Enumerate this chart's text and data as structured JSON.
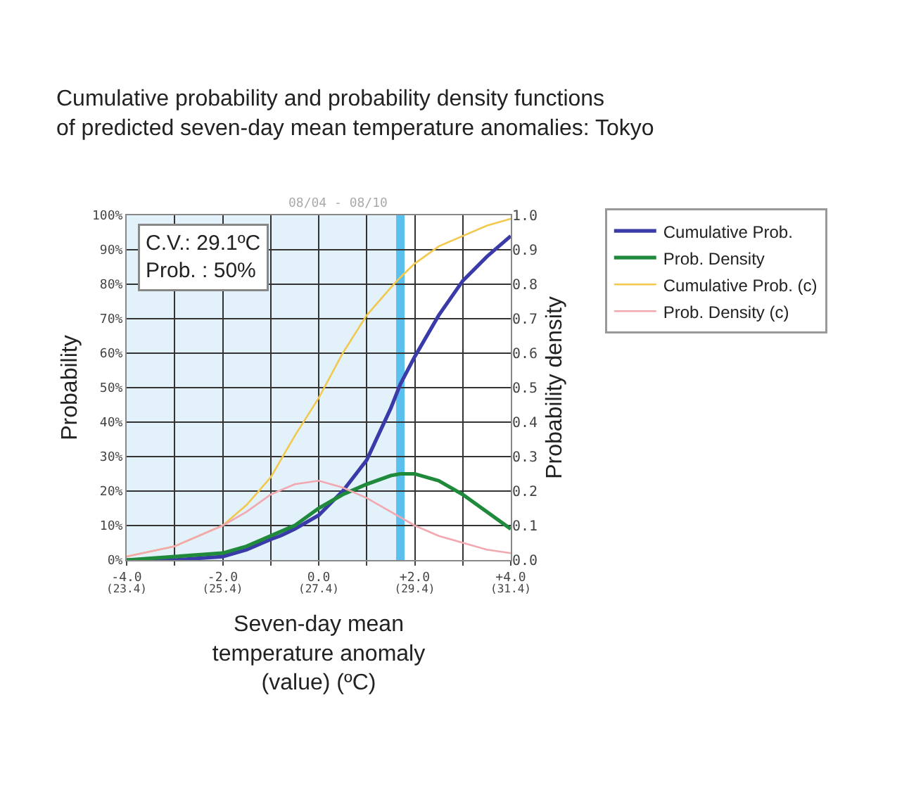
{
  "chart_data": {
    "type": "line",
    "title": "Cumulative probability and probability density functions\nof predicted seven-day mean temperature anomalies: Tokyo",
    "xlabel": "Seven-day mean\ntemperature anomaly\n(value) (ºC)",
    "ylabel": "Probability",
    "y2label": "Probability density",
    "annotations": [
      "C.V.: 29.1ºC\nProb. : 50%",
      "08/04 - 08/10"
    ],
    "series": [
      {
        "name": "Cumulative Prob.",
        "color": "#3a3aa8",
        "x": [
          -4,
          -3,
          -2,
          -1.5,
          -1,
          -0.8,
          -0.5,
          0,
          0.5,
          1,
          1.5,
          1.7,
          2,
          2.5,
          3,
          3.5,
          4
        ],
        "values": [
          0,
          0,
          1,
          3,
          6,
          7,
          9,
          13,
          20,
          29,
          44,
          51,
          59,
          71,
          81,
          88,
          94
        ]
      },
      {
        "name": "Prob. Density",
        "color": "#1f8a3c",
        "axis": "y2",
        "x": [
          -4,
          -3,
          -2,
          -1.5,
          -1,
          -0.5,
          0,
          0.5,
          1,
          1.5,
          1.7,
          2,
          2.5,
          3,
          3.5,
          4
        ],
        "values": [
          0,
          0.01,
          0.02,
          0.04,
          0.07,
          0.1,
          0.15,
          0.19,
          0.22,
          0.245,
          0.25,
          0.25,
          0.23,
          0.19,
          0.14,
          0.09
        ]
      },
      {
        "name": "Cumulative Prob. (c)",
        "color": "#f2c94c",
        "x": [
          -4,
          -3,
          -2,
          -1.5,
          -1,
          -0.5,
          0,
          0.5,
          1,
          1.5,
          1.7,
          2,
          2.5,
          3,
          3.5,
          4
        ],
        "values": [
          1,
          4,
          10,
          16,
          24,
          36,
          47,
          60,
          71,
          79,
          82,
          86,
          91,
          94,
          97,
          99
        ]
      },
      {
        "name": "Prob. Density (c)",
        "color": "#f2a8b0",
        "axis": "y2",
        "x": [
          -4,
          -3,
          -2,
          -1.5,
          -1,
          -0.5,
          0,
          0.5,
          1,
          1.5,
          2,
          2.5,
          3,
          3.5,
          4
        ],
        "values": [
          0.01,
          0.04,
          0.1,
          0.14,
          0.19,
          0.22,
          0.23,
          0.21,
          0.18,
          0.14,
          0.1,
          0.07,
          0.05,
          0.03,
          0.02
        ]
      }
    ],
    "xlim": [
      -4,
      4
    ],
    "xticks": [
      {
        "value": -4,
        "label": "-4.0"
      },
      {
        "value": -3,
        "label": null
      },
      {
        "value": -2,
        "label": "-2.0"
      },
      {
        "value": -1,
        "label": null
      },
      {
        "value": 0,
        "label": "0.0"
      },
      {
        "value": 1,
        "label": null
      },
      {
        "value": 2,
        "label": "+2.0"
      },
      {
        "value": 3,
        "label": null
      },
      {
        "value": 4,
        "label": "+4.0"
      }
    ],
    "x2lim": [
      23.4,
      31.4
    ],
    "x2ticks": [
      {
        "value": 23.4,
        "label": "(23.4)"
      },
      {
        "value": 25.4,
        "label": "(25.4)"
      },
      {
        "value": 27.4,
        "label": "(27.4)"
      },
      {
        "value": 29.4,
        "label": "(29.4)"
      },
      {
        "value": 31.4,
        "label": "(31.4)"
      }
    ],
    "ylim": [
      0,
      100
    ],
    "yticks": [
      {
        "value": 0,
        "label": "0%"
      },
      {
        "value": 10,
        "label": "10%"
      },
      {
        "value": 20,
        "label": "20%"
      },
      {
        "value": 30,
        "label": "30%"
      },
      {
        "value": 40,
        "label": "40%"
      },
      {
        "value": 50,
        "label": "50%"
      },
      {
        "value": 60,
        "label": "60%"
      },
      {
        "value": 70,
        "label": "70%"
      },
      {
        "value": 80,
        "label": "80%"
      },
      {
        "value": 90,
        "label": "90%"
      },
      {
        "value": 100,
        "label": "100%"
      }
    ],
    "y2lim": [
      0,
      1
    ],
    "y2ticks": [
      {
        "value": 0,
        "label": "0.0"
      },
      {
        "value": 0.1,
        "label": "0.1"
      },
      {
        "value": 0.2,
        "label": "0.2"
      },
      {
        "value": 0.3,
        "label": "0.3"
      },
      {
        "value": 0.4,
        "label": "0.4"
      },
      {
        "value": 0.5,
        "label": "0.5"
      },
      {
        "value": 0.6,
        "label": "0.6"
      },
      {
        "value": 0.7,
        "label": "0.7"
      },
      {
        "value": 0.8,
        "label": "0.8"
      },
      {
        "value": 0.9,
        "label": "0.9"
      },
      {
        "value": 1,
        "label": "1.0"
      }
    ],
    "bands": [
      {
        "axis": "x",
        "from": -4,
        "to": 1.7,
        "color": "#e2f1fa"
      }
    ],
    "ref_lines": [
      {
        "axis": "x",
        "value": 1.7,
        "color": "#5cc0ee"
      }
    ],
    "grid": true,
    "legend": "top right",
    "marker": "none",
    "line_style": "solid"
  }
}
